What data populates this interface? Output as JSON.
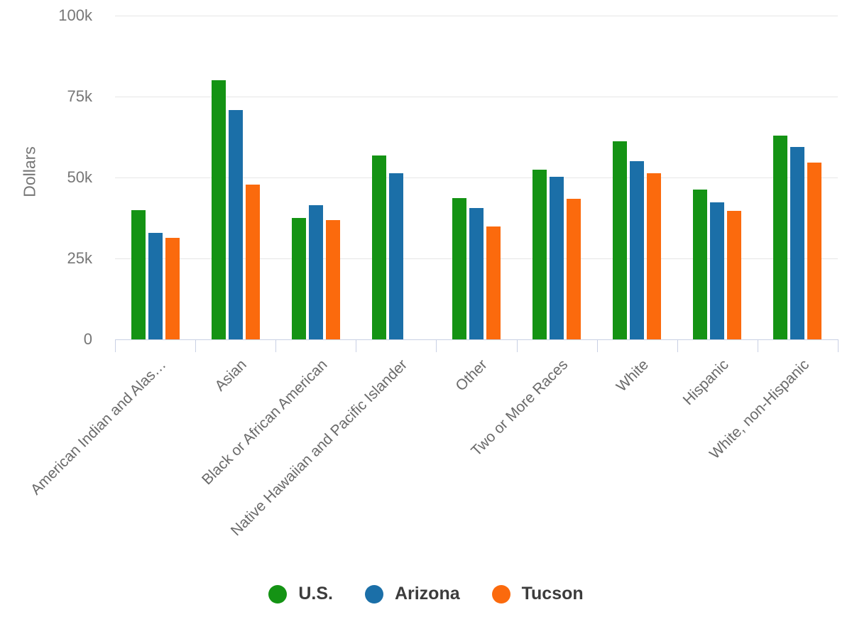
{
  "chart_data": {
    "type": "bar",
    "title": "",
    "xlabel": "",
    "ylabel": "Dollars",
    "ylim": [
      0,
      100000
    ],
    "grid": true,
    "legend_position": "bottom",
    "yticks": [
      {
        "value": 0,
        "label": "0"
      },
      {
        "value": 25000,
        "label": "25k"
      },
      {
        "value": 50000,
        "label": "50k"
      },
      {
        "value": 75000,
        "label": "75k"
      },
      {
        "value": 100000,
        "label": "100k"
      }
    ],
    "categories": [
      "American Indian and Alas…",
      "Asian",
      "Black or African American",
      "Native Hawaiian and Pacific Islander",
      "Other",
      "Two or More Races",
      "White",
      "Hispanic",
      "White, non-Hispanic"
    ],
    "series": [
      {
        "name": "U.S.",
        "color": "#149314",
        "values": [
          40000,
          80000,
          37500,
          56800,
          43700,
          52400,
          61200,
          46300,
          63000
        ]
      },
      {
        "name": "Arizona",
        "color": "#1b6fa8",
        "values": [
          32800,
          70900,
          41500,
          51400,
          40600,
          50200,
          55100,
          42300,
          59400
        ]
      },
      {
        "name": "Tucson",
        "color": "#fb6a0d",
        "values": [
          31300,
          47800,
          36900,
          null,
          34900,
          43400,
          51300,
          39700,
          54600
        ]
      }
    ]
  },
  "colors": {
    "grid": "#e6e6e6",
    "axis": "#c9d0e4",
    "tick_label": "#767676",
    "category_label": "#6a6a6a",
    "legend_text": "#3c3c3c",
    "background": "#ffffff"
  }
}
